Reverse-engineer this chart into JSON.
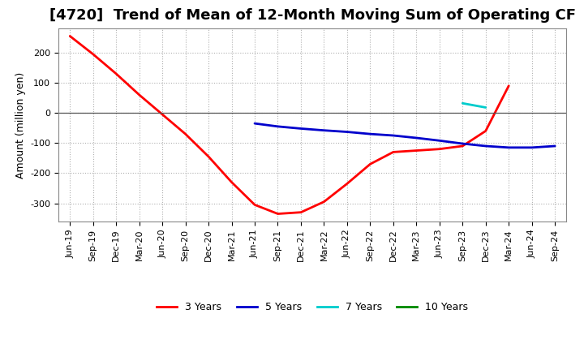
{
  "title": "[4720]  Trend of Mean of 12-Month Moving Sum of Operating CF",
  "ylabel": "Amount (million yen)",
  "background_color": "#ffffff",
  "plot_background_color": "#ffffff",
  "grid_color": "#b0b0b0",
  "x_labels": [
    "Jun-19",
    "Sep-19",
    "Dec-19",
    "Mar-20",
    "Jun-20",
    "Sep-20",
    "Dec-20",
    "Mar-21",
    "Jun-21",
    "Sep-21",
    "Dec-21",
    "Mar-22",
    "Jun-22",
    "Sep-22",
    "Dec-22",
    "Mar-23",
    "Jun-23",
    "Sep-23",
    "Dec-23",
    "Mar-24",
    "Jun-24",
    "Sep-24"
  ],
  "series_3yr": {
    "color": "#ff0000",
    "label": "3 Years",
    "values": [
      255,
      195,
      130,
      60,
      -5,
      -70,
      -145,
      -230,
      -305,
      -335,
      -330,
      -295,
      -235,
      -170,
      -130,
      -125,
      -120,
      -110,
      -60,
      90,
      null,
      null
    ]
  },
  "series_5yr": {
    "color": "#0000cc",
    "label": "5 Years",
    "values": [
      null,
      null,
      null,
      null,
      null,
      null,
      null,
      null,
      -35,
      -45,
      -52,
      -58,
      -63,
      -70,
      -75,
      -83,
      -92,
      -102,
      -110,
      -115,
      -115,
      -110
    ]
  },
  "series_7yr": {
    "color": "#00cccc",
    "label": "7 Years",
    "values": [
      null,
      null,
      null,
      null,
      null,
      null,
      null,
      null,
      null,
      null,
      null,
      null,
      null,
      null,
      null,
      null,
      null,
      32,
      18,
      null,
      null,
      null
    ]
  },
  "series_10yr": {
    "color": "#008800",
    "label": "10 Years",
    "values": [
      null,
      null,
      null,
      null,
      null,
      null,
      null,
      null,
      null,
      null,
      null,
      null,
      null,
      null,
      null,
      null,
      null,
      null,
      null,
      null,
      null,
      null
    ]
  },
  "ylim": [
    -360,
    280
  ],
  "yticks": [
    -300,
    -200,
    -100,
    0,
    100,
    200
  ],
  "title_fontsize": 13,
  "axis_fontsize": 9,
  "tick_fontsize": 8,
  "legend_fontsize": 9
}
